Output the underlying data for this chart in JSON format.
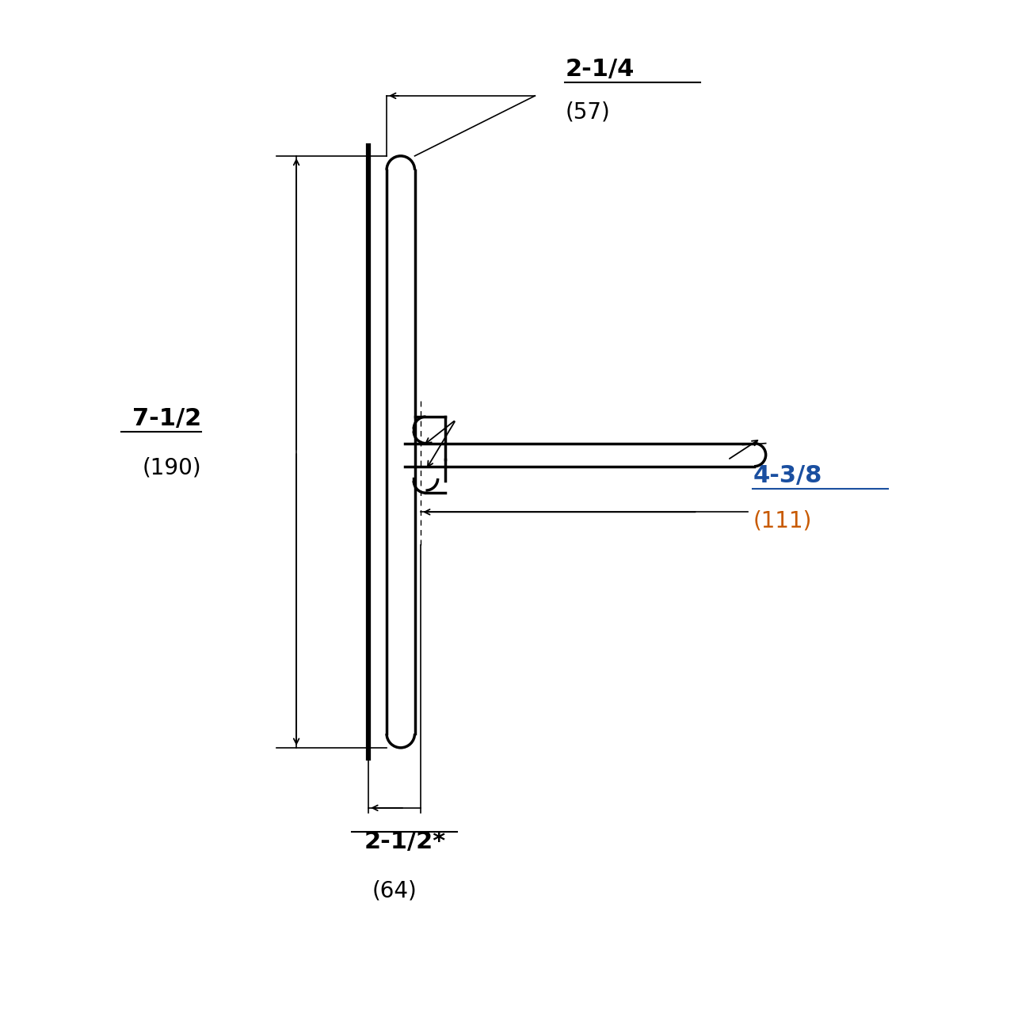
{
  "bg_color": "#ffffff",
  "line_color": "#000000",
  "dim_color_black": "#000000",
  "dim_color_blue": "#1a4fa0",
  "dim_color_orange": "#c85a00",
  "fig_size": [
    12.8,
    12.8
  ],
  "dpi": 100,
  "dim_top_label": "2-1/4",
  "dim_top_sub": "(57)",
  "dim_left_label": "7-1/2",
  "dim_left_sub": "(190)",
  "dim_bottom_label": "2-1/2*",
  "dim_bottom_sub": "(64)",
  "dim_lever_label": "4-3/8",
  "dim_lever_sub": "(111)"
}
